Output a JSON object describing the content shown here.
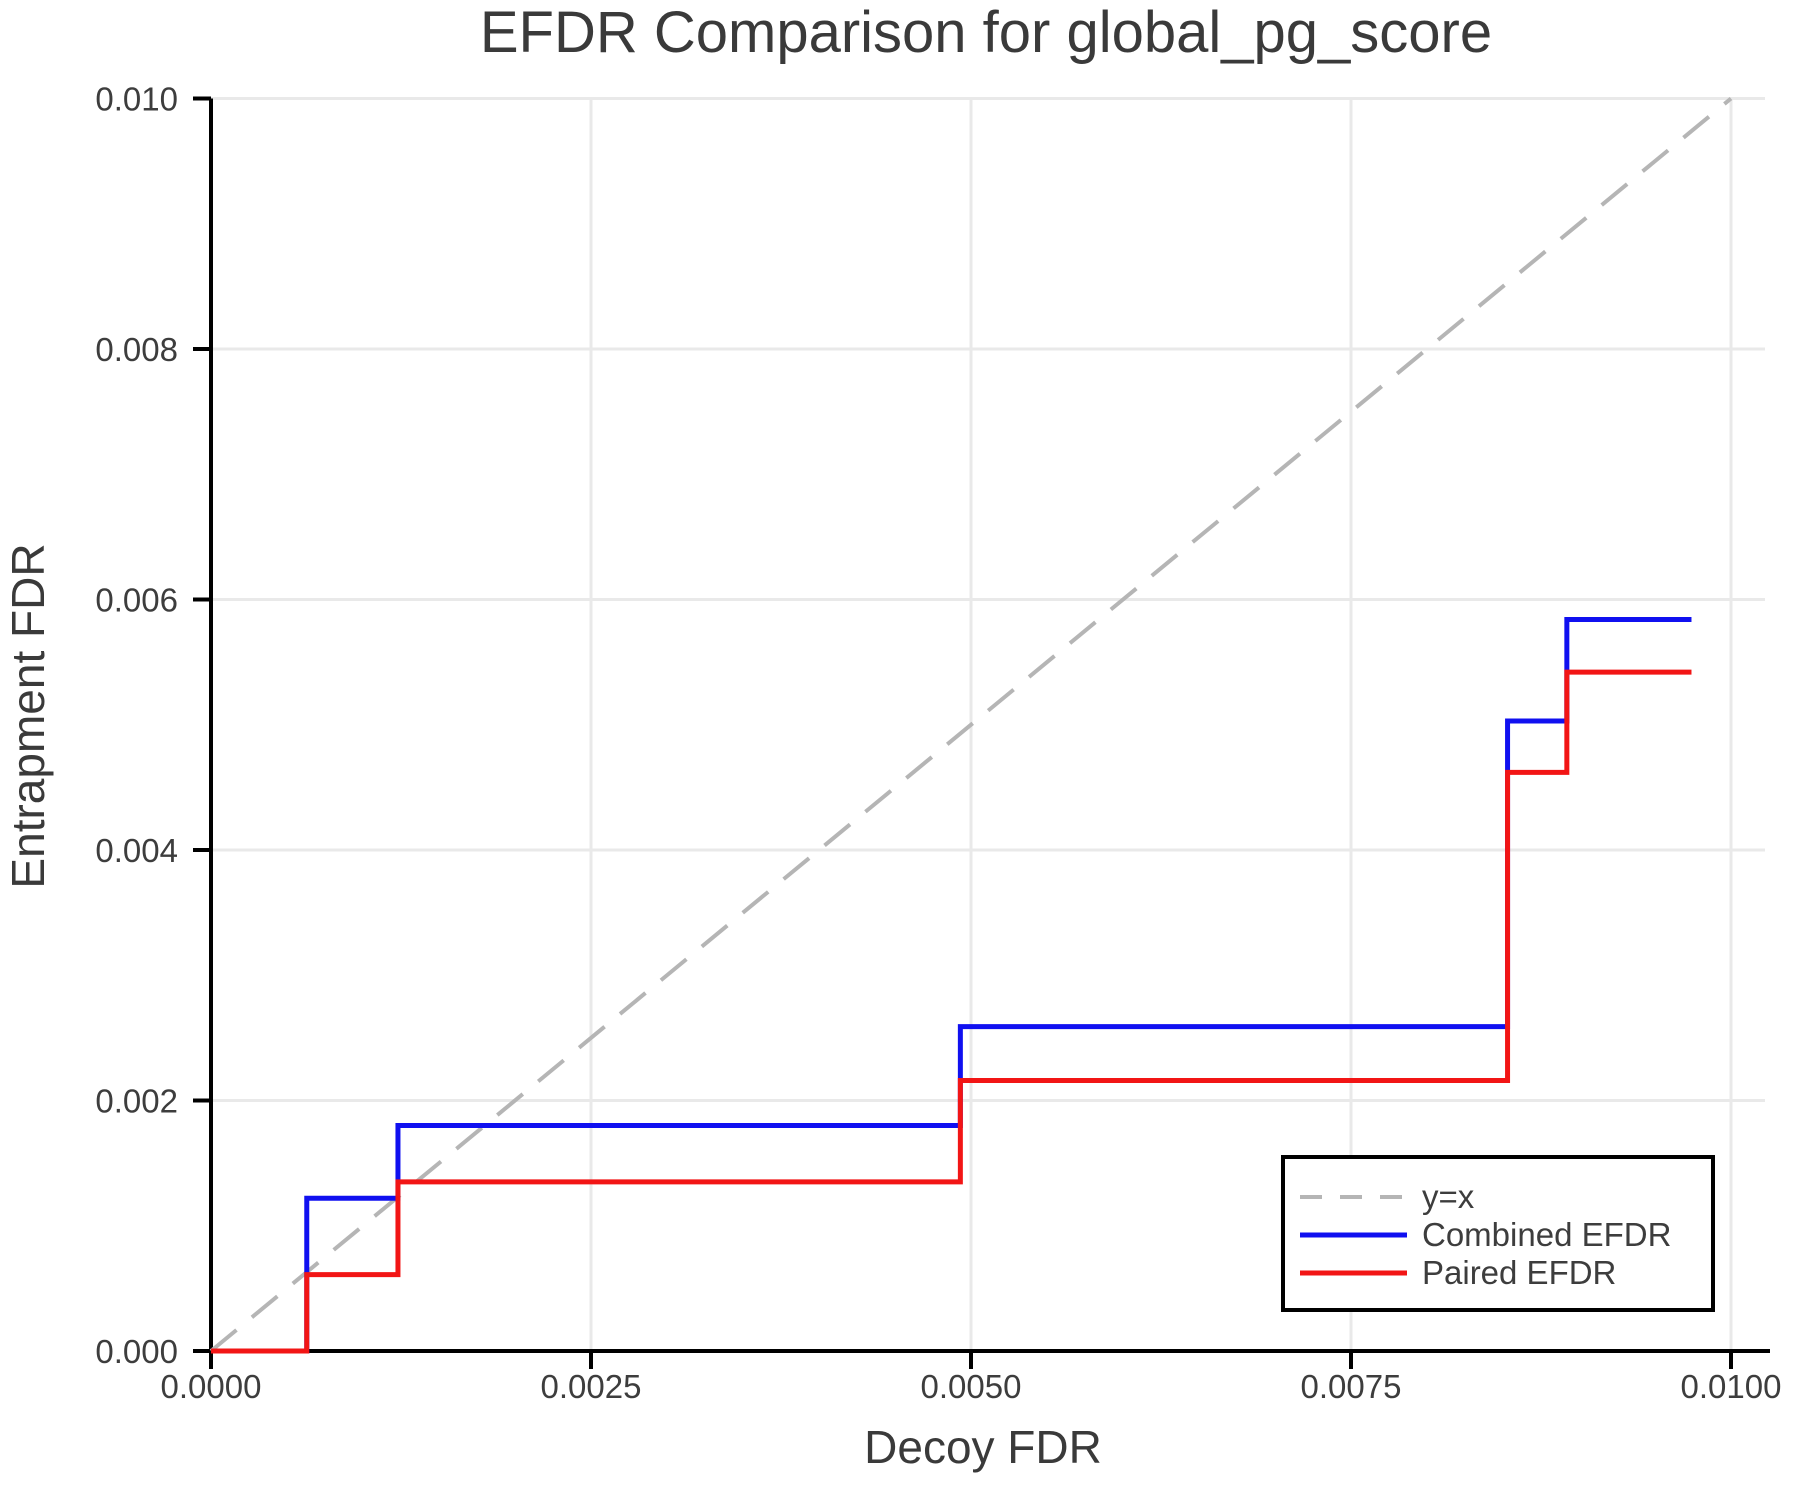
{
  "chart_data": {
    "type": "line",
    "title": "EFDR Comparison for global_pg_score",
    "xlabel": "Decoy FDR",
    "ylabel": "Entrapment FDR",
    "xlim": [
      0.0,
      0.01022
    ],
    "ylim": [
      0.0,
      0.01002
    ],
    "grid": true,
    "legend_position": "lower right",
    "x_ticks": [
      0.0,
      0.0025,
      0.005,
      0.0075,
      0.01
    ],
    "x_tick_labels": [
      "0.0000",
      "0.0025",
      "0.0050",
      "0.0075",
      "0.0100"
    ],
    "y_ticks": [
      0.0,
      0.002,
      0.004,
      0.006,
      0.008,
      0.01
    ],
    "y_tick_labels": [
      "0.000",
      "0.002",
      "0.004",
      "0.006",
      "0.008",
      "0.010"
    ],
    "series": [
      {
        "name": "y=x",
        "kind": "reference-line",
        "color": "#b5b5b5",
        "dashed": true,
        "points": [
          [
            0.0,
            0.0
          ],
          [
            0.01,
            0.01
          ]
        ]
      },
      {
        "name": "Combined EFDR",
        "kind": "step",
        "color": "#1010f0",
        "dashed": false,
        "points": [
          [
            0.0,
            0.0
          ],
          [
            0.00063,
            0.0
          ],
          [
            0.00063,
            0.00122
          ],
          [
            0.00123,
            0.00122
          ],
          [
            0.00123,
            0.0018
          ],
          [
            0.00493,
            0.0018
          ],
          [
            0.00493,
            0.00259
          ],
          [
            0.00853,
            0.00259
          ],
          [
            0.00853,
            0.00503
          ],
          [
            0.00892,
            0.00503
          ],
          [
            0.00892,
            0.00584
          ],
          [
            0.00974,
            0.00584
          ]
        ]
      },
      {
        "name": "Paired EFDR",
        "kind": "step",
        "color": "#f21515",
        "dashed": false,
        "points": [
          [
            0.0,
            0.0
          ],
          [
            0.00063,
            0.0
          ],
          [
            0.00063,
            0.00061
          ],
          [
            0.00123,
            0.00061
          ],
          [
            0.00123,
            0.00135
          ],
          [
            0.00493,
            0.00135
          ],
          [
            0.00493,
            0.00216
          ],
          [
            0.00853,
            0.00216
          ],
          [
            0.00853,
            0.00462
          ],
          [
            0.00892,
            0.00462
          ],
          [
            0.00892,
            0.00542
          ],
          [
            0.00974,
            0.00542
          ]
        ]
      }
    ],
    "legend": {
      "entries": [
        "y=x",
        "Combined EFDR",
        "Paired EFDR"
      ]
    }
  }
}
